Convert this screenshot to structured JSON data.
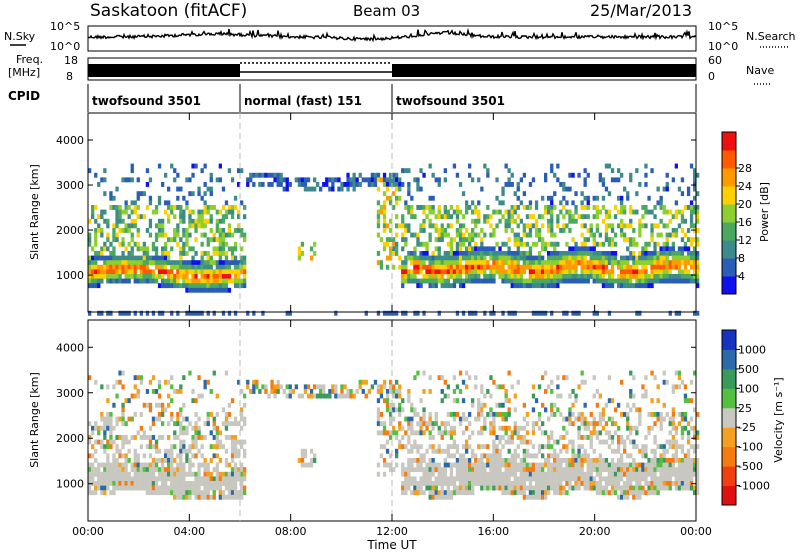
{
  "header": {
    "station": "Saskatoon (fitACF)",
    "beam": "Beam 03",
    "date": "25/Mar/2013"
  },
  "aux_labels": {
    "nsky": "N.Sky",
    "nsearch": "N.Search",
    "freq_line1": "Freq.",
    "freq_line2": "[MHz]",
    "nave": "Nave",
    "cpid": "CPID"
  },
  "noise_axis": {
    "left_top": "10^5",
    "left_bottom": "10^0",
    "right_top": "10^5",
    "right_bottom": "10^0"
  },
  "freq_axis": {
    "left_top": "18",
    "left_bottom": "8",
    "right_top": "60",
    "right_bottom": "0"
  },
  "cpid_segments": [
    {
      "label": "twofsound 3501",
      "start_hr": 0,
      "end_hr": 6
    },
    {
      "label": "normal (fast) 151",
      "start_hr": 6,
      "end_hr": 12
    },
    {
      "label": "twofsound 3501",
      "start_hr": 12,
      "end_hr": 24
    }
  ],
  "chart_data": [
    {
      "type": "heatmap",
      "panel": "power",
      "ylabel": "Slant Range [km]",
      "ylim": [
        180,
        4600
      ],
      "yticks": [
        "1000",
        "2000",
        "3000",
        "4000"
      ],
      "xlim_hr": [
        0,
        24
      ],
      "colorbar": {
        "title": "Power [dB]",
        "ticks": [
          "4",
          "8",
          "12",
          "16",
          "20",
          "24",
          "28"
        ],
        "colors": [
          "#1010ee",
          "#2a5db5",
          "#3e8a8a",
          "#4aa860",
          "#8ccf2e",
          "#ffd000",
          "#ff9a00",
          "#ff5a00",
          "#ee1010"
        ]
      },
      "mode_change_hr": [
        6,
        12
      ]
    },
    {
      "type": "heatmap",
      "panel": "velocity",
      "ylabel": "Slant Range [km]",
      "ylim": [
        180,
        4600
      ],
      "yticks": [
        "1000",
        "2000",
        "3000",
        "4000"
      ],
      "xlim_hr": [
        0,
        24
      ],
      "colorbar": {
        "title": "Velocity [m s⁻¹]",
        "ticks": [
          "1000",
          "500",
          "100",
          "25",
          "-25",
          "-100",
          "-500",
          "-1000"
        ],
        "colors": [
          "#1535c0",
          "#2a6aa8",
          "#3a9a5a",
          "#55c040",
          "#c8c8c0",
          "#f5a020",
          "#f57a10",
          "#f04010",
          "#e01010"
        ]
      },
      "mode_change_hr": [
        6,
        12
      ]
    }
  ],
  "time_axis": {
    "label": "Time UT",
    "ticks": [
      "00:00",
      "04:00",
      "08:00",
      "12:00",
      "16:00",
      "20:00",
      "00:00"
    ]
  }
}
